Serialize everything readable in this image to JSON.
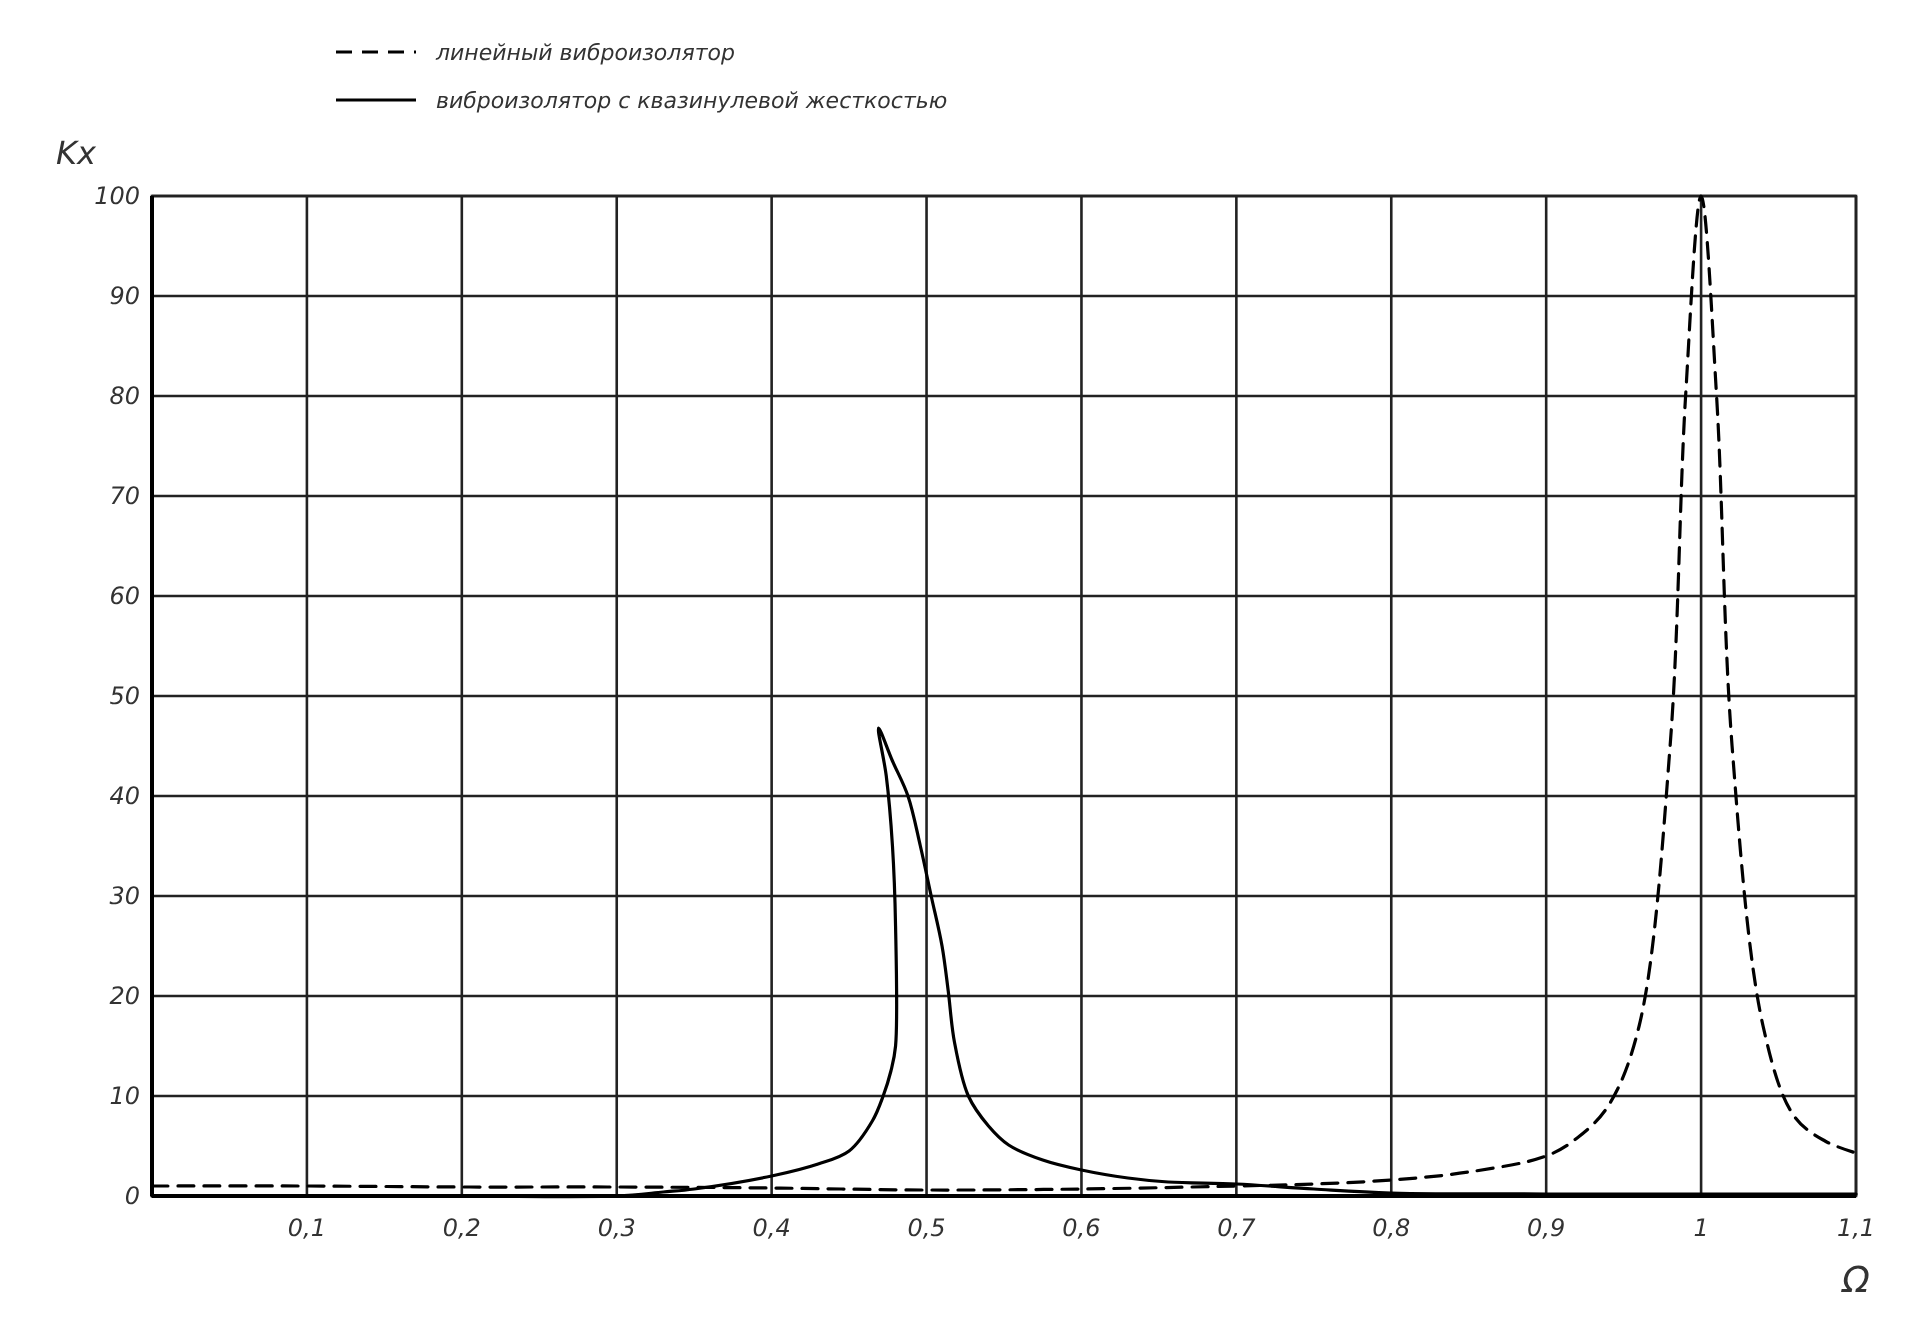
{
  "chart_data": {
    "type": "line",
    "xlabel": "Ω",
    "ylabel": "Kx",
    "xlim": [
      0,
      1.1
    ],
    "ylim": [
      0,
      100
    ],
    "xticks": [
      {
        "value": 0.1,
        "label": "0,1"
      },
      {
        "value": 0.2,
        "label": "0,2"
      },
      {
        "value": 0.3,
        "label": "0,3"
      },
      {
        "value": 0.4,
        "label": "0,4"
      },
      {
        "value": 0.5,
        "label": "0,5"
      },
      {
        "value": 0.6,
        "label": "0,6"
      },
      {
        "value": 0.7,
        "label": "0,7"
      },
      {
        "value": 0.8,
        "label": "0,8"
      },
      {
        "value": 0.9,
        "label": "0,9"
      },
      1,
      {
        "value": 1.1,
        "label": "1,1"
      }
    ],
    "yticks": [
      0,
      10,
      20,
      30,
      40,
      50,
      60,
      70,
      80,
      90,
      100
    ],
    "grid": true,
    "legend": "top left",
    "marker": "none",
    "series": [
      {
        "name": "линейный виброизолятор",
        "color": "#000000",
        "line_style": "dashed",
        "x": [
          0,
          0.1,
          0.2,
          0.3,
          0.4,
          0.5,
          0.6,
          0.7,
          0.75,
          0.8,
          0.85,
          0.9,
          0.92,
          0.94,
          0.96,
          0.98,
          0.99,
          1.0,
          1.01,
          1.02,
          1.04,
          1.06,
          1.08,
          1.1
        ],
        "values": [
          1.0,
          1.0,
          0.9,
          0.9,
          0.8,
          0.6,
          0.7,
          1.0,
          1.2,
          1.6,
          2.4,
          4.0,
          5.8,
          9,
          17,
          45,
          80,
          100,
          80,
          45,
          17,
          8,
          5.5,
          4.3
        ]
      },
      {
        "name": "виброизолятор с квазинулевой жесткостью",
        "color": "#000000",
        "line_style": "solid",
        "x": [
          0,
          0.1,
          0.2,
          0.3,
          0.33,
          0.35,
          0.4,
          0.43,
          0.45,
          0.465,
          0.472,
          0.477,
          0.48,
          0.48,
          0.478,
          0.474,
          0.469,
          0.478,
          0.488,
          0.496,
          0.503,
          0.51,
          0.514,
          0.518,
          0.527,
          0.54,
          0.553,
          0.575,
          0.6,
          0.63,
          0.656,
          0.7,
          0.75,
          0.8,
          0.9,
          1.0,
          1.1
        ],
        "values": [
          0,
          0,
          0,
          0,
          0.4,
          0.7,
          2.0,
          3.2,
          4.5,
          7.5,
          10,
          12.5,
          15,
          27,
          35,
          42,
          46.8,
          43.5,
          40,
          35,
          30,
          25,
          20.5,
          15.4,
          10,
          7,
          5.1,
          3.6,
          2.6,
          1.8,
          1.4,
          1.2,
          0.7,
          0.3,
          0.2,
          0.2,
          0.2
        ]
      }
    ]
  }
}
